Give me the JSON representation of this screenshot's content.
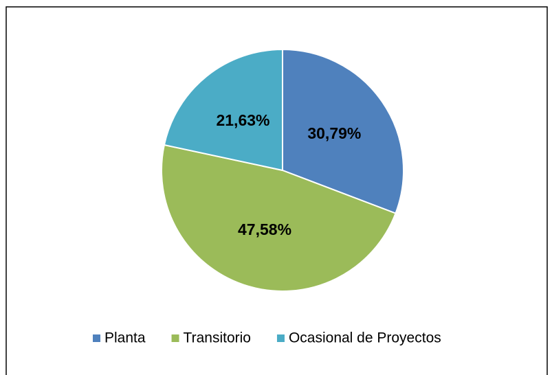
{
  "chart_data": {
    "type": "pie",
    "categories": [
      "Planta",
      "Transitorio",
      "Ocasional de Proyectos"
    ],
    "values": [
      30.79,
      47.58,
      21.63
    ],
    "value_labels": [
      "30,79%",
      "47,58%",
      "21,63%"
    ],
    "colors": [
      "#4f81bd",
      "#9bbb59",
      "#4bacc6"
    ],
    "legend": "bottom"
  }
}
